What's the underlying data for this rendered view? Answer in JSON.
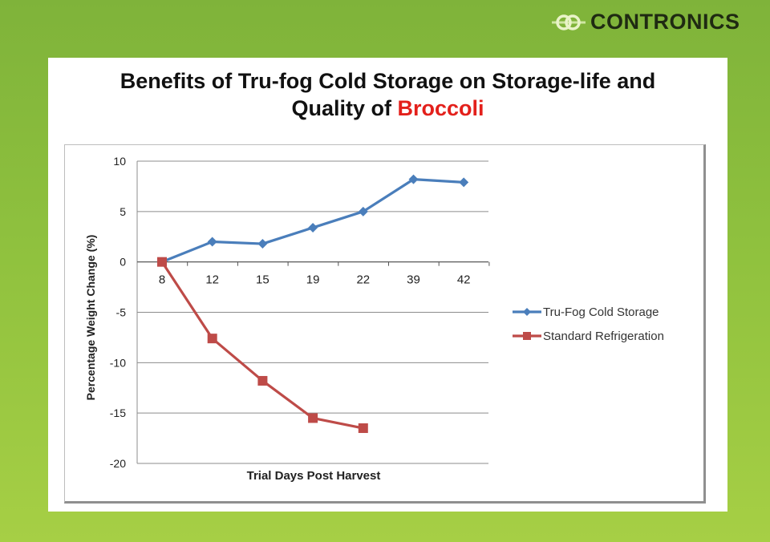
{
  "brand": {
    "name": "CONTRONICS",
    "accent_color": "#6a9a2e"
  },
  "slide": {
    "title_part1": "Benefits of Tru-fog Cold Storage on Storage-life and",
    "title_part2": "Quality of ",
    "title_accent": "Broccoli",
    "accent_color": "#e3201b"
  },
  "chart_data": {
    "type": "line",
    "categories": [
      "8",
      "12",
      "15",
      "19",
      "22",
      "39",
      "42"
    ],
    "series": [
      {
        "name": "Tru-Fog Cold Storage",
        "color": "#4a7ebb",
        "marker": "diamond",
        "values": [
          0,
          2.0,
          1.8,
          3.4,
          5.0,
          8.2,
          7.9
        ]
      },
      {
        "name": "Standard Refrigeration",
        "color": "#be4b48",
        "marker": "square",
        "values": [
          0,
          -7.6,
          -11.8,
          -15.5,
          -16.5,
          null,
          null
        ]
      }
    ],
    "xlabel": "Trial Days Post Harvest",
    "ylabel": "Percentage Weight Change (%)",
    "ylim": [
      -20,
      10
    ],
    "yticks": [
      "10",
      "5",
      "0",
      "-5",
      "-10",
      "-15",
      "-20"
    ],
    "grid": true,
    "legend_position": "right"
  }
}
